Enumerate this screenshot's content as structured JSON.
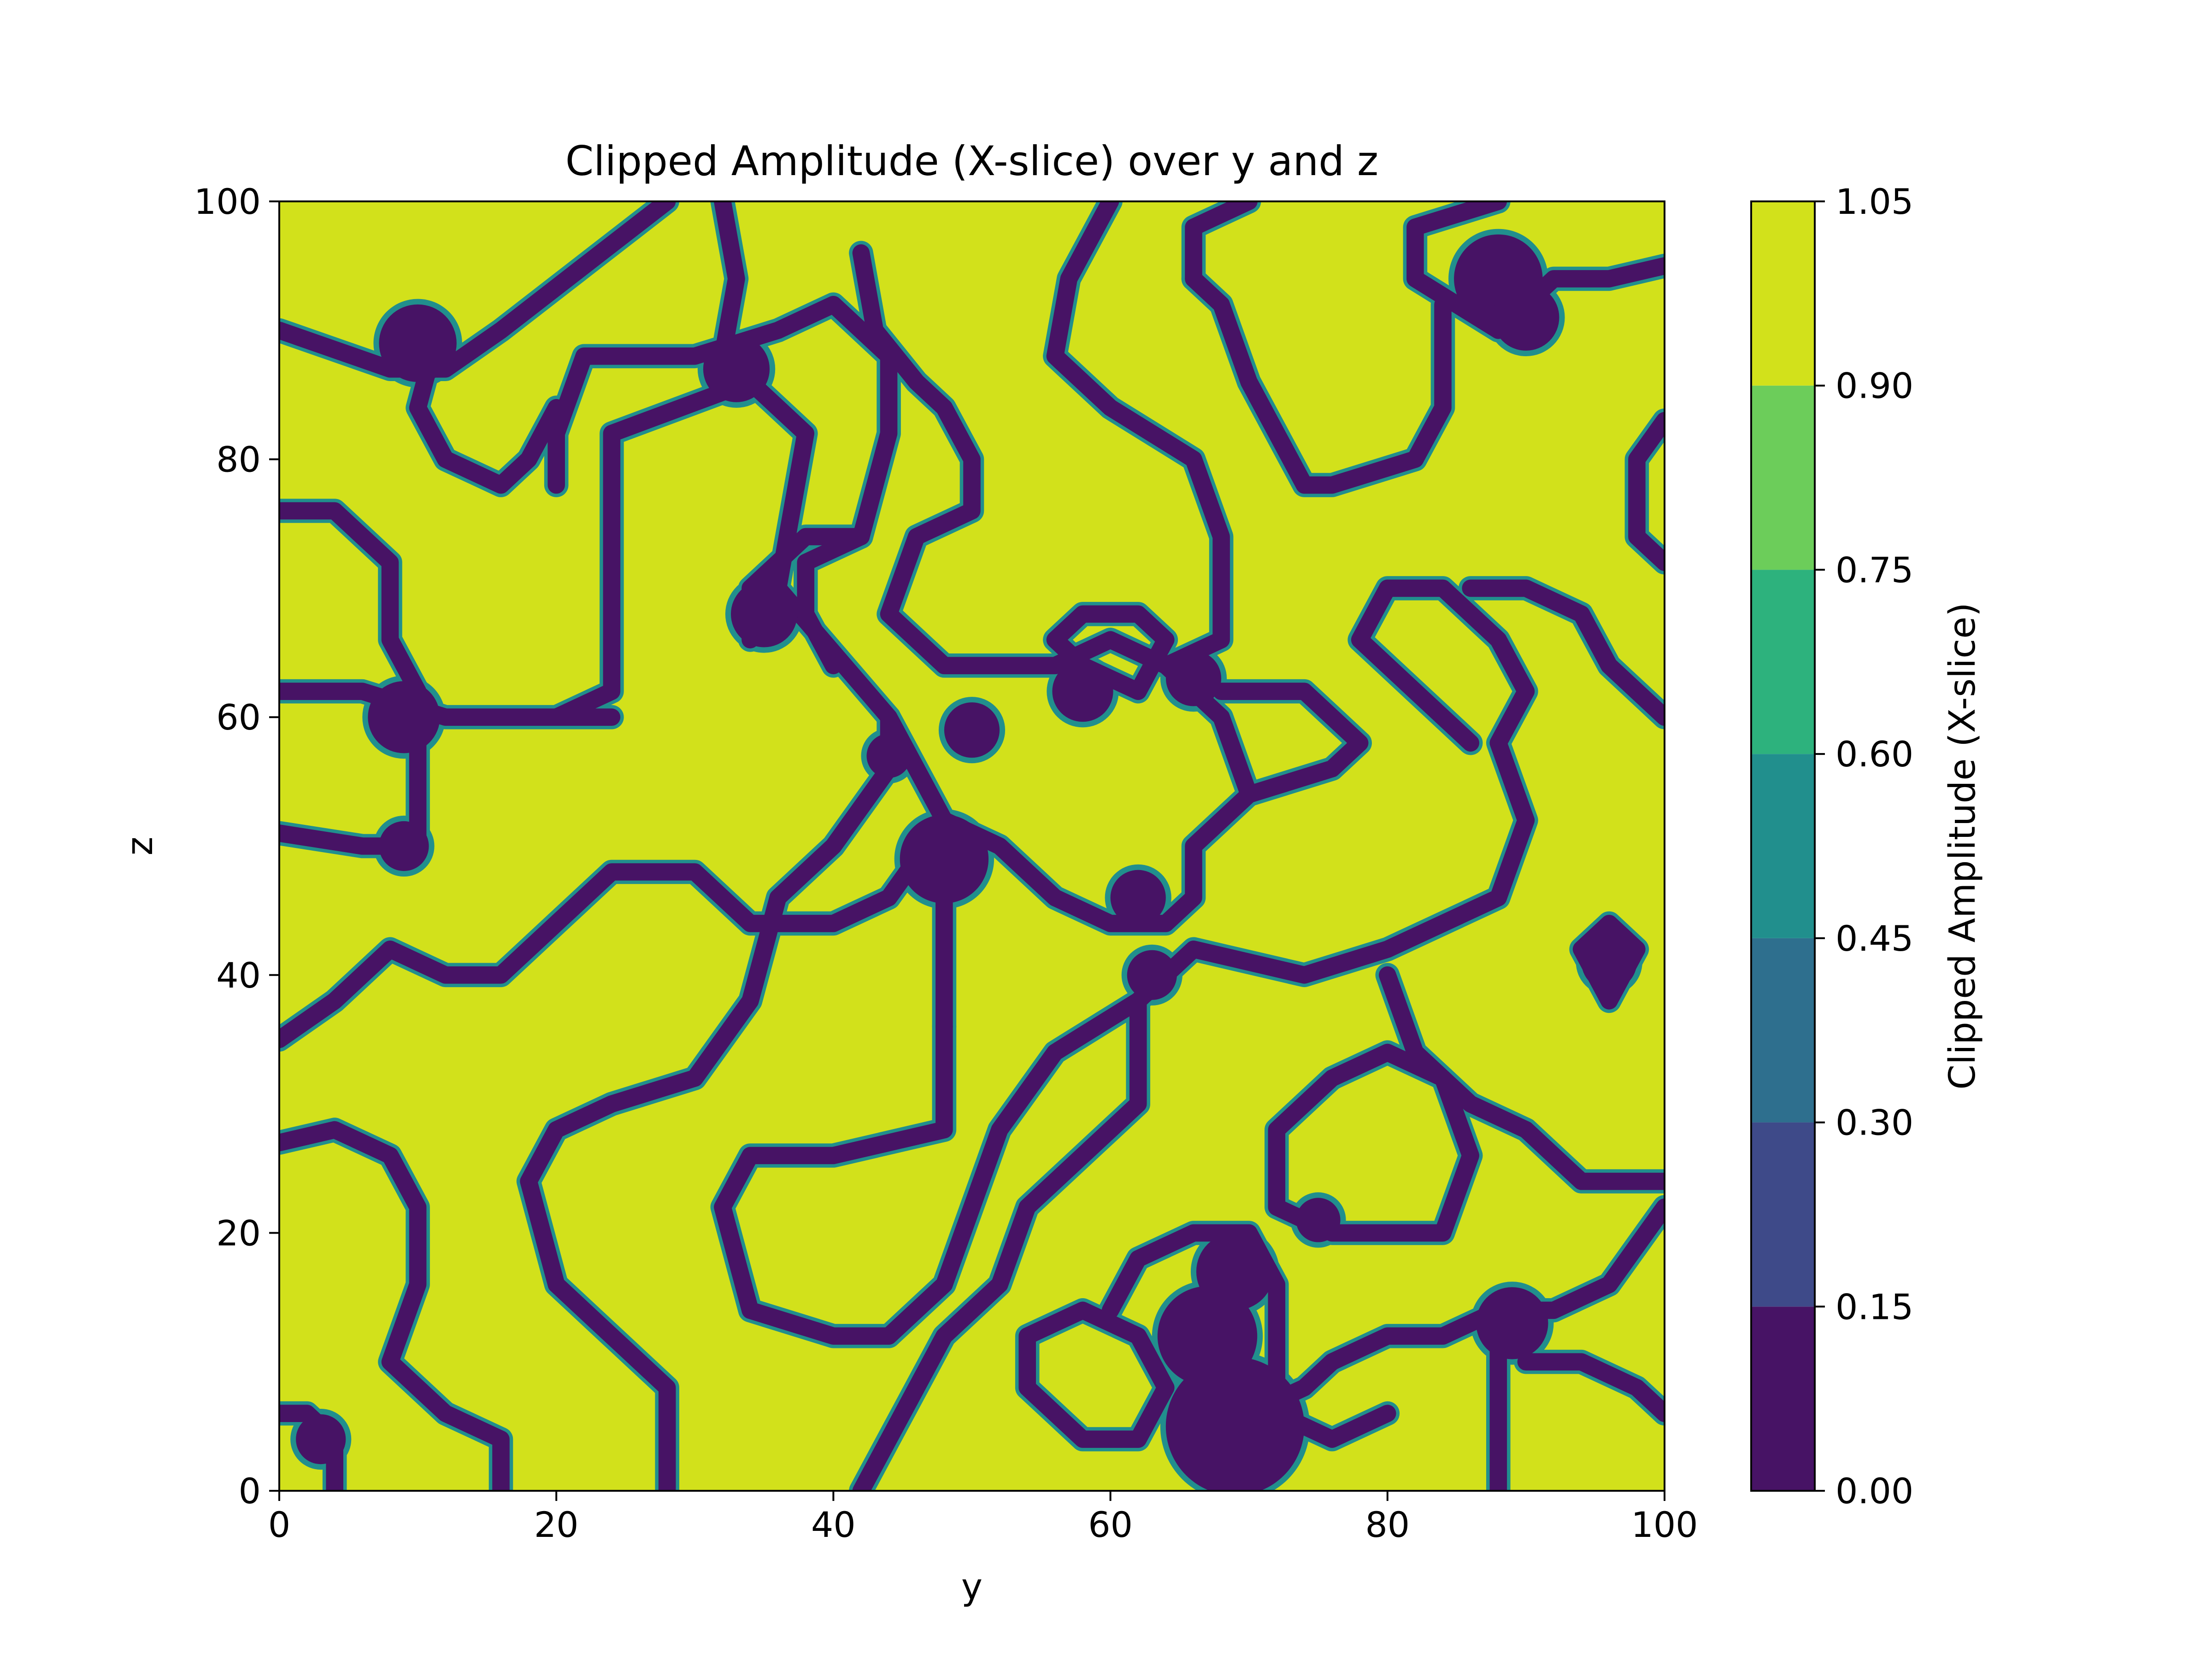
{
  "chart_data": {
    "type": "heatmap",
    "title": "Clipped Amplitude (X-slice) over y and z",
    "xlabel": "y",
    "ylabel": "z",
    "xlim": [
      0,
      100
    ],
    "ylim": [
      0,
      100
    ],
    "x_ticks": [
      0,
      20,
      40,
      60,
      80,
      100
    ],
    "y_ticks": [
      0,
      20,
      40,
      60,
      80,
      100
    ],
    "x_tick_labels": [
      "0",
      "20",
      "40",
      "60",
      "80",
      "100"
    ],
    "y_tick_labels": [
      "0",
      "20",
      "40",
      "60",
      "80",
      "100"
    ],
    "colorbar": {
      "label": "Clipped Amplitude (X-slice)",
      "levels": [
        0.0,
        0.15,
        0.3,
        0.45,
        0.6,
        0.75,
        0.9,
        1.05
      ],
      "tick_labels": [
        "0.00",
        "0.15",
        "0.30",
        "0.45",
        "0.60",
        "0.75",
        "0.90",
        "1.05"
      ],
      "colors": [
        "#471365",
        "#3e4a89",
        "#2e6f8e",
        "#218f8d",
        "#24aa83",
        "#2db27d",
        "#6ccd5a",
        "#d2e11b"
      ]
    },
    "background_value": 1.0,
    "dark_value": 0.0,
    "grid": false,
    "contour_paths": [
      [
        [
          0,
          90
        ],
        [
          8,
          87
        ],
        [
          12,
          87
        ],
        [
          16,
          90
        ],
        [
          22,
          95
        ],
        [
          28,
          100
        ]
      ],
      [
        [
          20,
          60
        ],
        [
          24,
          62
        ],
        [
          24,
          82
        ],
        [
          34,
          86
        ],
        [
          38,
          82
        ],
        [
          36,
          70
        ],
        [
          44,
          60
        ],
        [
          48,
          52
        ]
      ],
      [
        [
          0,
          62
        ],
        [
          6,
          62
        ],
        [
          12,
          60
        ],
        [
          24,
          60
        ]
      ],
      [
        [
          0,
          51
        ],
        [
          6,
          50
        ],
        [
          10,
          50
        ],
        [
          10,
          56
        ],
        [
          10,
          62
        ],
        [
          8,
          66
        ],
        [
          8,
          72
        ],
        [
          4,
          76
        ],
        [
          0,
          76
        ]
      ],
      [
        [
          34,
          66
        ],
        [
          34,
          70
        ],
        [
          38,
          74
        ],
        [
          42,
          74
        ],
        [
          44,
          82
        ],
        [
          44,
          88
        ],
        [
          40,
          92
        ],
        [
          36,
          90
        ],
        [
          30,
          88
        ],
        [
          22,
          88
        ],
        [
          20,
          82
        ],
        [
          20,
          78
        ]
      ],
      [
        [
          11,
          88
        ],
        [
          10,
          84
        ],
        [
          12,
          80
        ],
        [
          16,
          78
        ],
        [
          18,
          80
        ],
        [
          20,
          84
        ]
      ],
      [
        [
          32,
          100
        ],
        [
          33,
          94
        ],
        [
          32,
          88
        ]
      ],
      [
        [
          42,
          96
        ],
        [
          43,
          90
        ],
        [
          46,
          86
        ],
        [
          48,
          84
        ],
        [
          50,
          80
        ],
        [
          50,
          76
        ],
        [
          46,
          74
        ],
        [
          44,
          68
        ],
        [
          48,
          64
        ],
        [
          56,
          64
        ],
        [
          60,
          66
        ],
        [
          64,
          64
        ],
        [
          68,
          60
        ],
        [
          70,
          54
        ]
      ],
      [
        [
          60,
          100
        ],
        [
          57,
          94
        ],
        [
          56,
          88
        ],
        [
          60,
          84
        ],
        [
          66,
          80
        ],
        [
          68,
          74
        ],
        [
          68,
          66
        ],
        [
          64,
          64
        ]
      ],
      [
        [
          66,
          94
        ],
        [
          66,
          98
        ],
        [
          70,
          100
        ]
      ],
      [
        [
          88,
          100
        ],
        [
          82,
          98
        ],
        [
          82,
          94
        ],
        [
          88,
          90
        ],
        [
          92,
          94
        ],
        [
          96,
          94
        ],
        [
          100,
          95
        ]
      ],
      [
        [
          84,
          92
        ],
        [
          84,
          84
        ],
        [
          82,
          80
        ],
        [
          76,
          78
        ],
        [
          74,
          78
        ],
        [
          72,
          82
        ],
        [
          70,
          86
        ],
        [
          68,
          92
        ],
        [
          66,
          94
        ]
      ],
      [
        [
          100,
          83
        ],
        [
          98,
          80
        ],
        [
          98,
          74
        ],
        [
          100,
          72
        ]
      ],
      [
        [
          48,
          52
        ],
        [
          52,
          50
        ],
        [
          56,
          46
        ],
        [
          60,
          44
        ],
        [
          64,
          44
        ],
        [
          66,
          46
        ],
        [
          66,
          50
        ],
        [
          70,
          54
        ],
        [
          76,
          56
        ],
        [
          78,
          58
        ],
        [
          74,
          62
        ],
        [
          68,
          62
        ]
      ],
      [
        [
          48,
          52
        ],
        [
          44,
          46
        ],
        [
          40,
          44
        ],
        [
          34,
          44
        ],
        [
          30,
          48
        ],
        [
          24,
          48
        ],
        [
          20,
          44
        ],
        [
          16,
          40
        ],
        [
          12,
          40
        ],
        [
          8,
          42
        ],
        [
          4,
          38
        ],
        [
          0,
          35
        ]
      ],
      [
        [
          48,
          52
        ],
        [
          48,
          44
        ],
        [
          48,
          40
        ],
        [
          48,
          36
        ]
      ],
      [
        [
          62,
          62
        ],
        [
          58,
          64
        ],
        [
          56,
          66
        ],
        [
          58,
          68
        ],
        [
          62,
          68
        ],
        [
          64,
          66
        ],
        [
          62,
          62
        ]
      ],
      [
        [
          40,
          64
        ],
        [
          38,
          68
        ],
        [
          38,
          72
        ],
        [
          42,
          74
        ]
      ],
      [
        [
          44,
          60
        ],
        [
          44,
          56
        ],
        [
          40,
          50
        ],
        [
          36,
          46
        ],
        [
          34,
          38
        ],
        [
          30,
          32
        ],
        [
          24,
          30
        ],
        [
          20,
          28
        ],
        [
          18,
          24
        ],
        [
          20,
          16
        ],
        [
          24,
          12
        ],
        [
          28,
          8
        ],
        [
          28,
          4
        ],
        [
          28,
          0
        ]
      ],
      [
        [
          48,
          36
        ],
        [
          48,
          28
        ],
        [
          40,
          26
        ],
        [
          34,
          26
        ],
        [
          32,
          22
        ],
        [
          34,
          14
        ],
        [
          40,
          12
        ],
        [
          44,
          12
        ]
      ],
      [
        [
          44,
          12
        ],
        [
          48,
          16
        ],
        [
          50,
          22
        ],
        [
          52,
          28
        ],
        [
          56,
          34
        ],
        [
          62,
          38
        ],
        [
          66,
          42
        ],
        [
          74,
          40
        ],
        [
          80,
          42
        ],
        [
          84,
          44
        ],
        [
          88,
          46
        ],
        [
          90,
          52
        ],
        [
          88,
          58
        ],
        [
          90,
          62
        ],
        [
          88,
          66
        ],
        [
          84,
          70
        ],
        [
          80,
          70
        ],
        [
          78,
          66
        ],
        [
          82,
          62
        ],
        [
          86,
          58
        ]
      ],
      [
        [
          62,
          38
        ],
        [
          62,
          30
        ],
        [
          58,
          26
        ],
        [
          54,
          22
        ],
        [
          52,
          16
        ],
        [
          48,
          12
        ],
        [
          46,
          8
        ],
        [
          44,
          4
        ],
        [
          42,
          0
        ]
      ],
      [
        [
          0,
          27
        ],
        [
          4,
          28
        ],
        [
          8,
          26
        ],
        [
          10,
          22
        ],
        [
          10,
          16
        ],
        [
          8,
          10
        ],
        [
          12,
          6
        ],
        [
          16,
          4
        ],
        [
          16,
          0
        ]
      ],
      [
        [
          0,
          6
        ],
        [
          2,
          6
        ],
        [
          4,
          4
        ],
        [
          4,
          0
        ]
      ],
      [
        [
          54,
          8
        ],
        [
          54,
          12
        ],
        [
          58,
          14
        ],
        [
          62,
          12
        ],
        [
          64,
          8
        ],
        [
          62,
          4
        ],
        [
          58,
          4
        ],
        [
          54,
          8
        ]
      ],
      [
        [
          60,
          14
        ],
        [
          62,
          18
        ],
        [
          66,
          20
        ],
        [
          70,
          20
        ],
        [
          72,
          16
        ],
        [
          72,
          10
        ],
        [
          72,
          6
        ],
        [
          76,
          4
        ],
        [
          80,
          6
        ]
      ],
      [
        [
          70,
          6
        ],
        [
          74,
          8
        ],
        [
          76,
          10
        ],
        [
          80,
          12
        ],
        [
          84,
          12
        ],
        [
          88,
          14
        ],
        [
          92,
          14
        ],
        [
          96,
          16
        ],
        [
          100,
          22
        ]
      ],
      [
        [
          88,
          14
        ],
        [
          88,
          8
        ],
        [
          88,
          0
        ]
      ],
      [
        [
          90,
          10
        ],
        [
          94,
          10
        ],
        [
          98,
          8
        ],
        [
          100,
          6
        ]
      ],
      [
        [
          100,
          60
        ],
        [
          96,
          64
        ],
        [
          94,
          68
        ],
        [
          90,
          70
        ],
        [
          86,
          70
        ]
      ],
      [
        [
          80,
          40
        ],
        [
          82,
          34
        ],
        [
          86,
          30
        ],
        [
          90,
          28
        ],
        [
          94,
          24
        ],
        [
          100,
          24
        ]
      ],
      [
        [
          72,
          22
        ],
        [
          72,
          28
        ],
        [
          76,
          32
        ],
        [
          80,
          34
        ],
        [
          84,
          32
        ],
        [
          86,
          26
        ],
        [
          84,
          20
        ],
        [
          76,
          20
        ],
        [
          72,
          22
        ]
      ],
      [
        [
          94,
          42
        ],
        [
          96,
          44
        ],
        [
          98,
          42
        ],
        [
          96,
          38
        ],
        [
          94,
          42
        ]
      ]
    ],
    "dark_blobs": [
      [
        48,
        49,
        3.2
      ],
      [
        44,
        57,
        1.6
      ],
      [
        58,
        62,
        2.2
      ],
      [
        66,
        63,
        2.0
      ],
      [
        50,
        59,
        2.0
      ],
      [
        10,
        89,
        2.8
      ],
      [
        9,
        60,
        2.6
      ],
      [
        33,
        87,
        2.4
      ],
      [
        35,
        68,
        2.4
      ],
      [
        88,
        94,
        3.2
      ],
      [
        90,
        91,
        2.4
      ],
      [
        69,
        5,
        5.0
      ],
      [
        67,
        12,
        3.6
      ],
      [
        69,
        17,
        2.8
      ],
      [
        89,
        13,
        2.6
      ],
      [
        96,
        41,
        2.0
      ],
      [
        3,
        4,
        1.8
      ],
      [
        75,
        21,
        1.6
      ],
      [
        62,
        46,
        2.0
      ],
      [
        63,
        40,
        1.8
      ],
      [
        9,
        50,
        1.8
      ]
    ]
  }
}
